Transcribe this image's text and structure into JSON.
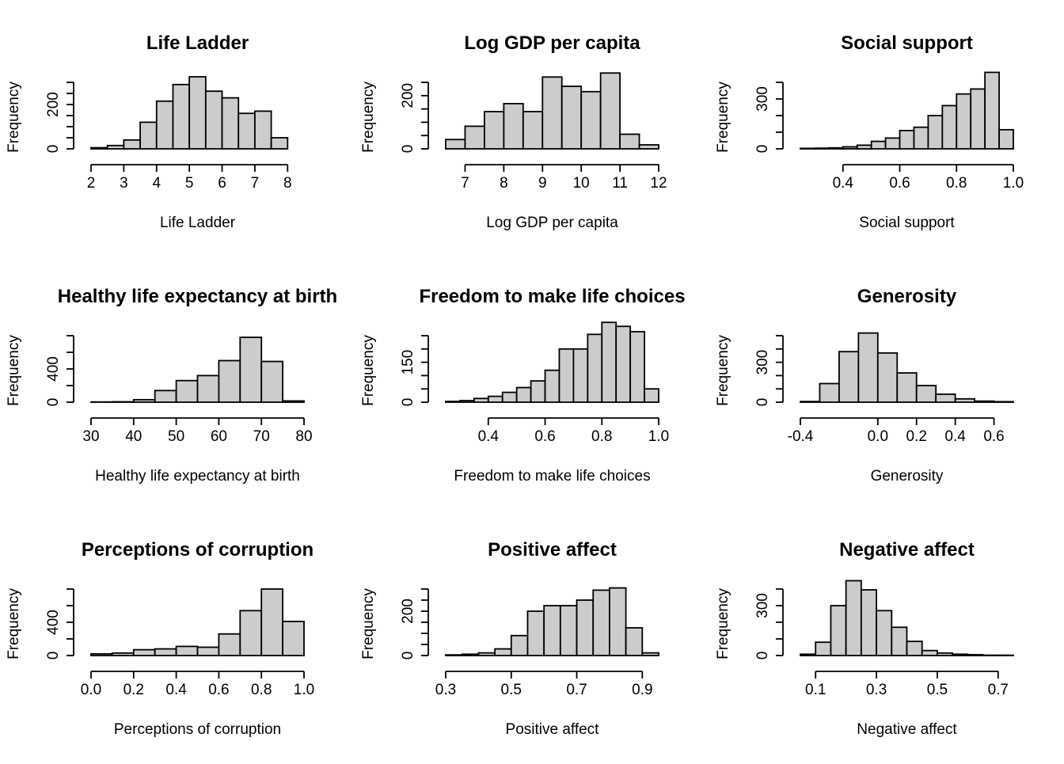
{
  "chart_data": [
    {
      "type": "bar",
      "title": "Life Ladder",
      "xlabel": "Life Ladder",
      "ylabel": "Frequency",
      "xlim": [
        2,
        8.5
      ],
      "ylim": [
        0,
        300
      ],
      "bin_edges": [
        2,
        2.5,
        3,
        3.5,
        4,
        4.5,
        5,
        5.5,
        6,
        6.5,
        7,
        7.5,
        8
      ],
      "values": [
        5,
        15,
        40,
        120,
        215,
        290,
        325,
        260,
        230,
        160,
        170,
        50
      ],
      "x_ticks": [
        2,
        3,
        4,
        5,
        6,
        7,
        8
      ],
      "x_tick_labels": [
        "2",
        "3",
        "4",
        "5",
        "6",
        "7",
        "8"
      ],
      "y_ticks": [
        0,
        50,
        100,
        150,
        200,
        250,
        300
      ],
      "y_tick_labels": [
        "0",
        "200"
      ],
      "y_labeled_ticks": [
        0,
        200
      ]
    },
    {
      "type": "bar",
      "title": "Log GDP per capita",
      "xlabel": "Log GDP per capita",
      "ylabel": "Frequency",
      "xlim": [
        6.5,
        12
      ],
      "ylim": [
        0,
        250
      ],
      "bin_edges": [
        6.5,
        7,
        7.5,
        8,
        8.5,
        9,
        9.5,
        10,
        10.5,
        11,
        11.5,
        12
      ],
      "values": [
        35,
        85,
        140,
        170,
        140,
        270,
        235,
        215,
        285,
        55,
        15
      ],
      "x_ticks": [
        7,
        8,
        9,
        10,
        11,
        12
      ],
      "x_tick_labels": [
        "7",
        "8",
        "9",
        "10",
        "11",
        "12"
      ],
      "y_ticks": [
        0,
        50,
        100,
        150,
        200,
        250
      ],
      "y_tick_labels": [
        "0",
        "200"
      ],
      "y_labeled_ticks": [
        0,
        200
      ]
    },
    {
      "type": "bar",
      "title": "Social support",
      "xlabel": "Social support",
      "ylabel": "Frequency",
      "xlim": [
        0.25,
        1.0
      ],
      "ylim": [
        0,
        400
      ],
      "bin_edges": [
        0.25,
        0.3,
        0.35,
        0.4,
        0.45,
        0.5,
        0.55,
        0.6,
        0.65,
        0.7,
        0.75,
        0.8,
        0.85,
        0.9,
        0.95,
        1.0
      ],
      "values": [
        3,
        4,
        6,
        12,
        22,
        45,
        65,
        110,
        130,
        200,
        260,
        330,
        360,
        460,
        115
      ],
      "x_ticks": [
        0.4,
        0.6,
        0.8,
        1.0
      ],
      "x_tick_labels": [
        "0.4",
        "0.6",
        "0.8",
        "1.0"
      ],
      "y_ticks": [
        0,
        100,
        200,
        300,
        400
      ],
      "y_tick_labels": [
        "0",
        "300"
      ],
      "y_labeled_ticks": [
        0,
        300
      ]
    },
    {
      "type": "bar",
      "title": "Healthy life expectancy at birth",
      "xlabel": "Healthy life expectancy at birth",
      "ylabel": "Frequency",
      "xlim": [
        30,
        80
      ],
      "ylim": [
        0,
        800
      ],
      "bin_edges": [
        30,
        35,
        40,
        45,
        50,
        55,
        60,
        65,
        70,
        75,
        80
      ],
      "values": [
        3,
        5,
        30,
        140,
        260,
        320,
        500,
        780,
        490,
        15
      ],
      "x_ticks": [
        30,
        40,
        50,
        60,
        70,
        80
      ],
      "x_tick_labels": [
        "30",
        "40",
        "50",
        "60",
        "70",
        "80"
      ],
      "y_ticks": [
        0,
        200,
        400,
        600,
        800
      ],
      "y_tick_labels": [
        "0",
        "400"
      ],
      "y_labeled_ticks": [
        0,
        400
      ]
    },
    {
      "type": "bar",
      "title": "Freedom to make life choices",
      "xlabel": "Freedom to make life choices",
      "ylabel": "Frequency",
      "xlim": [
        0.25,
        1.0
      ],
      "ylim": [
        0,
        250
      ],
      "bin_edges": [
        0.25,
        0.3,
        0.35,
        0.4,
        0.45,
        0.5,
        0.55,
        0.6,
        0.65,
        0.7,
        0.75,
        0.8,
        0.85,
        0.9,
        0.95,
        1.0
      ],
      "values": [
        3,
        6,
        14,
        22,
        37,
        55,
        80,
        120,
        200,
        200,
        255,
        300,
        285,
        265,
        50
      ],
      "x_ticks": [
        0.4,
        0.6,
        0.8,
        1.0
      ],
      "x_tick_labels": [
        "0.4",
        "0.6",
        "0.8",
        "1.0"
      ],
      "y_ticks": [
        0,
        50,
        100,
        150,
        200,
        250
      ],
      "y_tick_labels": [
        "0",
        "150"
      ],
      "y_labeled_ticks": [
        0,
        150
      ]
    },
    {
      "type": "bar",
      "title": "Generosity",
      "xlabel": "Generosity",
      "ylabel": "Frequency",
      "xlim": [
        -0.4,
        0.7
      ],
      "ylim": [
        0,
        500
      ],
      "bin_edges": [
        -0.4,
        -0.3,
        -0.2,
        -0.1,
        0.0,
        0.1,
        0.2,
        0.3,
        0.4,
        0.5,
        0.6,
        0.7
      ],
      "values": [
        5,
        140,
        380,
        520,
        370,
        220,
        125,
        60,
        25,
        8,
        4
      ],
      "x_ticks": [
        -0.4,
        0.0,
        0.2,
        0.4,
        0.6
      ],
      "x_tick_labels": [
        "-0.4",
        "0.0",
        "0.2",
        "0.4",
        "0.6"
      ],
      "y_ticks": [
        0,
        100,
        200,
        300,
        400,
        500
      ],
      "y_tick_labels": [
        "0",
        "300"
      ],
      "y_labeled_ticks": [
        0,
        300
      ]
    },
    {
      "type": "bar",
      "title": "Perceptions of corruption",
      "xlabel": "Perceptions of corruption",
      "ylabel": "Frequency",
      "xlim": [
        0.0,
        1.0
      ],
      "ylim": [
        0,
        800
      ],
      "bin_edges": [
        0.0,
        0.1,
        0.2,
        0.3,
        0.4,
        0.5,
        0.6,
        0.7,
        0.8,
        0.9,
        1.0
      ],
      "values": [
        20,
        30,
        70,
        80,
        110,
        100,
        260,
        540,
        800,
        410
      ],
      "x_ticks": [
        0.0,
        0.2,
        0.4,
        0.6,
        0.8,
        1.0
      ],
      "x_tick_labels": [
        "0.0",
        "0.2",
        "0.4",
        "0.6",
        "0.8",
        "1.0"
      ],
      "y_ticks": [
        0,
        200,
        400,
        600,
        800
      ],
      "y_tick_labels": [
        "0",
        "400"
      ],
      "y_labeled_ticks": [
        0,
        400
      ]
    },
    {
      "type": "bar",
      "title": "Positive affect",
      "xlabel": "Positive affect",
      "ylabel": "Frequency",
      "xlim": [
        0.3,
        0.95
      ],
      "ylim": [
        0,
        300
      ],
      "bin_edges": [
        0.3,
        0.35,
        0.4,
        0.45,
        0.5,
        0.55,
        0.6,
        0.65,
        0.7,
        0.75,
        0.8,
        0.85,
        0.9,
        0.95
      ],
      "values": [
        3,
        6,
        12,
        30,
        90,
        200,
        225,
        225,
        250,
        295,
        305,
        125,
        12
      ],
      "x_ticks": [
        0.3,
        0.5,
        0.7,
        0.9
      ],
      "x_tick_labels": [
        "0.3",
        "0.5",
        "0.7",
        "0.9"
      ],
      "y_ticks": [
        0,
        50,
        100,
        150,
        200,
        250,
        300
      ],
      "y_tick_labels": [
        "0",
        "200"
      ],
      "y_labeled_ticks": [
        0,
        200
      ]
    },
    {
      "type": "bar",
      "title": "Negative affect",
      "xlabel": "Negative affect",
      "ylabel": "Frequency",
      "xlim": [
        0.05,
        0.75
      ],
      "ylim": [
        0,
        400
      ],
      "bin_edges": [
        0.05,
        0.1,
        0.15,
        0.2,
        0.25,
        0.3,
        0.35,
        0.4,
        0.45,
        0.5,
        0.55,
        0.6,
        0.65,
        0.7,
        0.75
      ],
      "values": [
        8,
        80,
        300,
        450,
        395,
        270,
        170,
        85,
        30,
        15,
        8,
        5,
        2,
        2
      ],
      "x_ticks": [
        0.1,
        0.3,
        0.5,
        0.7
      ],
      "x_tick_labels": [
        "0.1",
        "0.3",
        "0.5",
        "0.7"
      ],
      "y_ticks": [
        0,
        100,
        200,
        300,
        400
      ],
      "y_tick_labels": [
        "0",
        "300"
      ],
      "y_labeled_ticks": [
        0,
        300
      ]
    }
  ],
  "colors": {
    "bar_fill": "#cccccc",
    "bar_stroke": "#000000"
  }
}
